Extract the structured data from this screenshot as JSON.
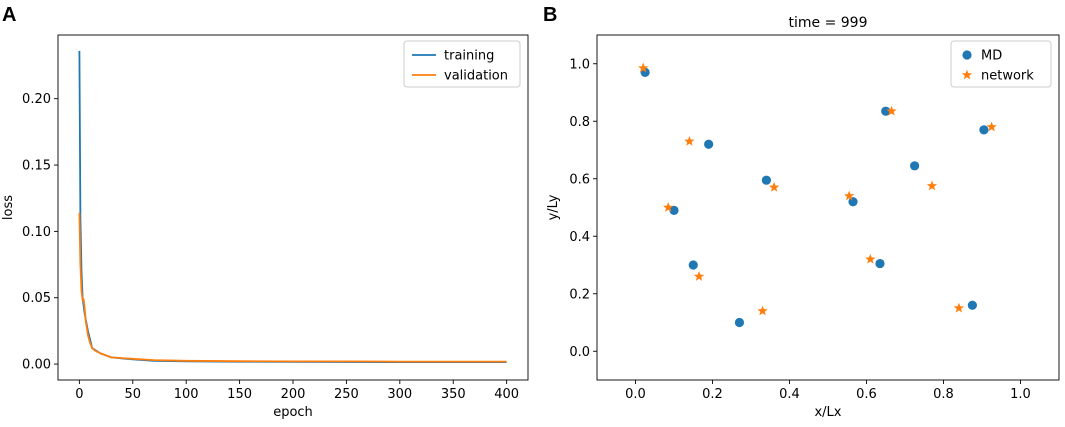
{
  "chart_data": [
    {
      "panel": "A",
      "type": "line",
      "title": "",
      "xlabel": "epoch",
      "ylabel": "loss",
      "xlim": [
        -20,
        420
      ],
      "ylim": [
        -0.012,
        0.248
      ],
      "xticks": [
        0,
        50,
        100,
        150,
        200,
        250,
        300,
        350,
        400
      ],
      "yticks": [
        0.0,
        0.05,
        0.1,
        0.15,
        0.2
      ],
      "ytick_labels": [
        "0.00",
        "0.05",
        "0.10",
        "0.15",
        "0.20"
      ],
      "legend_position": "top-right",
      "series": [
        {
          "name": "training",
          "color": "#1f77b4",
          "x": [
            0,
            1,
            2,
            3,
            5,
            8,
            12,
            20,
            30,
            50,
            70,
            100,
            150,
            200,
            250,
            300,
            350,
            400
          ],
          "y": [
            0.236,
            0.11,
            0.07,
            0.05,
            0.038,
            0.025,
            0.012,
            0.008,
            0.005,
            0.0035,
            0.0025,
            0.002,
            0.0018,
            0.0017,
            0.0016,
            0.0015,
            0.0015,
            0.0015
          ]
        },
        {
          "name": "validation",
          "color": "#ff7f0e",
          "x": [
            0,
            1,
            2,
            3,
            4,
            5,
            6,
            8,
            10,
            12,
            15,
            20,
            30,
            40,
            50,
            70,
            100,
            150,
            200,
            250,
            300,
            350,
            400
          ],
          "y": [
            0.114,
            0.075,
            0.055,
            0.048,
            0.049,
            0.042,
            0.032,
            0.022,
            0.016,
            0.012,
            0.01,
            0.008,
            0.005,
            0.0045,
            0.004,
            0.003,
            0.0025,
            0.0022,
            0.002,
            0.002,
            0.0019,
            0.0019,
            0.0019
          ]
        }
      ]
    },
    {
      "panel": "B",
      "type": "scatter",
      "title": "time = 999",
      "xlabel": "x/Lx",
      "ylabel": "y/Ly",
      "xlim": [
        -0.1,
        1.1
      ],
      "ylim": [
        -0.1,
        1.1
      ],
      "xticks": [
        0.0,
        0.2,
        0.4,
        0.6,
        0.8,
        1.0
      ],
      "xtick_labels": [
        "0.0",
        "0.2",
        "0.4",
        "0.6",
        "0.8",
        "1.0"
      ],
      "yticks": [
        0.0,
        0.2,
        0.4,
        0.6,
        0.8,
        1.0
      ],
      "ytick_labels": [
        "0.0",
        "0.2",
        "0.4",
        "0.6",
        "0.8",
        "1.0"
      ],
      "legend_position": "top-right",
      "series": [
        {
          "name": "MD",
          "color": "#1f77b4",
          "marker": "circle",
          "x": [
            0.025,
            0.19,
            0.1,
            0.34,
            0.15,
            0.27,
            0.565,
            0.65,
            0.635,
            0.725,
            0.905,
            0.875
          ],
          "y": [
            0.97,
            0.72,
            0.49,
            0.595,
            0.3,
            0.1,
            0.52,
            0.835,
            0.305,
            0.645,
            0.77,
            0.16
          ]
        },
        {
          "name": "network",
          "color": "#ff7f0e",
          "marker": "star",
          "x": [
            0.02,
            0.14,
            0.085,
            0.36,
            0.165,
            0.33,
            0.555,
            0.665,
            0.61,
            0.77,
            0.925,
            0.84
          ],
          "y": [
            0.985,
            0.73,
            0.5,
            0.57,
            0.26,
            0.14,
            0.54,
            0.835,
            0.32,
            0.575,
            0.78,
            0.15
          ]
        }
      ]
    }
  ]
}
